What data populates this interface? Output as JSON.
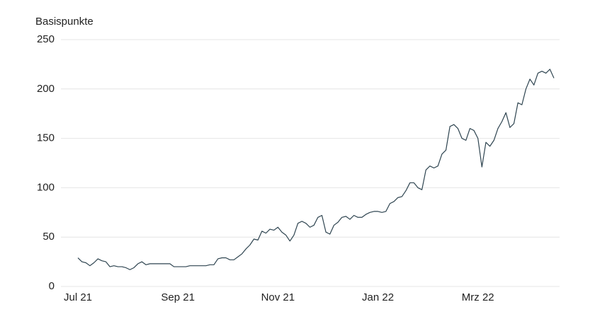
{
  "chart_data": {
    "type": "line",
    "y_label": "Basispunkte",
    "categories": [
      "Jul 21",
      null,
      null,
      null,
      null,
      null,
      null,
      null,
      null,
      null,
      null,
      null,
      null,
      null,
      null,
      null,
      null,
      null,
      null,
      null,
      null,
      null,
      null,
      null,
      null,
      "Sep 21",
      null,
      null,
      null,
      null,
      null,
      null,
      null,
      null,
      null,
      null,
      null,
      null,
      null,
      null,
      null,
      null,
      null,
      null,
      null,
      null,
      null,
      null,
      null,
      null,
      "Nov 21",
      null,
      null,
      null,
      null,
      null,
      null,
      null,
      null,
      null,
      null,
      null,
      null,
      null,
      null,
      null,
      null,
      null,
      null,
      null,
      null,
      null,
      null,
      null,
      null,
      "Jan 22",
      null,
      null,
      null,
      null,
      null,
      null,
      null,
      null,
      null,
      null,
      null,
      null,
      null,
      null,
      null,
      null,
      null,
      null,
      null,
      null,
      null,
      null,
      null,
      null,
      "Mrz 22",
      null,
      null,
      null,
      null,
      null,
      null,
      null,
      null,
      null,
      null,
      null,
      null,
      null,
      null,
      null,
      null,
      null,
      null,
      null
    ],
    "values": [
      29,
      25,
      24,
      21,
      24,
      28,
      26,
      25,
      20,
      21,
      20,
      20,
      19,
      17,
      19,
      23,
      25,
      22,
      23,
      23,
      23,
      23,
      23,
      23,
      20,
      20,
      20,
      20,
      21,
      21,
      21,
      21,
      21,
      22,
      22,
      28,
      29,
      29,
      27,
      27,
      30,
      33,
      38,
      42,
      48,
      47,
      56,
      54,
      58,
      57,
      60,
      55,
      52,
      46,
      52,
      64,
      66,
      64,
      60,
      62,
      70,
      72,
      55,
      53,
      62,
      65,
      70,
      71,
      68,
      72,
      70,
      70,
      73,
      75,
      76,
      76,
      75,
      76,
      84,
      86,
      90,
      91,
      97,
      105,
      105,
      100,
      98,
      118,
      122,
      120,
      122,
      134,
      138,
      162,
      164,
      160,
      150,
      148,
      160,
      158,
      150,
      121,
      146,
      142,
      148,
      160,
      167,
      176,
      161,
      165,
      186,
      184,
      200,
      210,
      204,
      216,
      218,
      216,
      220,
      211
    ],
    "color": "#2e4450",
    "ylim": [
      0,
      250
    ],
    "yticks": [
      0,
      50,
      100,
      150,
      200,
      250
    ],
    "grid": true
  }
}
